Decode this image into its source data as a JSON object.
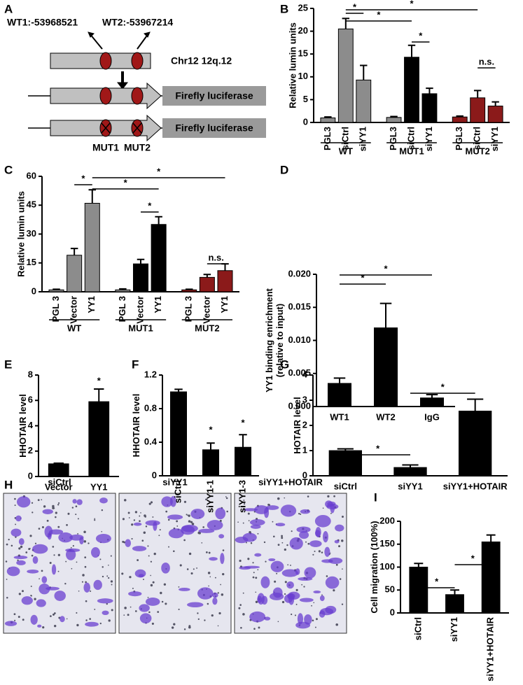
{
  "panel_labels": [
    "A",
    "B",
    "C",
    "D",
    "E",
    "F",
    "G",
    "H",
    "I"
  ],
  "diagram": {
    "labels": [
      "WT1:-53968521",
      "WT2:-53967214",
      "Chr12 12q.12",
      "Firefly luciferase",
      "Firefly luciferase",
      "MUT1",
      "MUT2"
    ]
  },
  "images": {
    "labels": [
      "siCtrl",
      "siYY1",
      "siYY1+HOTAIR"
    ]
  },
  "chart_data": [
    {
      "type": "bar",
      "ylabel": "Relative lumin units",
      "ylim": [
        0,
        25
      ],
      "yticks": [
        0,
        5,
        10,
        15,
        20,
        25
      ],
      "categories": [
        "PGL3",
        "siCtrl",
        "siYY1",
        "PGL3",
        "siCtrl",
        "siYY1",
        "PGL3",
        "siCtrl",
        "siYY1"
      ],
      "groups": [
        "WT",
        "MUT1",
        "MUT2"
      ],
      "values": [
        1.0,
        20.5,
        9.3,
        1.1,
        14.3,
        6.3,
        1.2,
        5.4,
        3.6
      ],
      "errors": [
        0.2,
        2.3,
        3.2,
        0.2,
        2.6,
        1.2,
        0.2,
        1.6,
        0.9
      ],
      "colors": [
        "#8c8c8c",
        "#8c8c8c",
        "#8c8c8c",
        "#8c8c8c",
        "#000000",
        "#000000",
        "#8b1a1a",
        "#8b1a1a",
        "#8b1a1a"
      ],
      "annotations": [
        "*",
        "*",
        "*",
        "*",
        "n.s."
      ]
    },
    {
      "type": "bar",
      "ylabel": "Relative lumin units",
      "ylim": [
        0,
        60
      ],
      "yticks": [
        0,
        15,
        30,
        45,
        60
      ],
      "categories": [
        "PGL 3",
        "Vector",
        "YY1",
        "PGL 3",
        "Vector",
        "YY1",
        "PGL 3",
        "Vector",
        "YY1"
      ],
      "groups": [
        "WT",
        "MUT1",
        "MUT2"
      ],
      "values": [
        1.0,
        19,
        46,
        1.0,
        14.5,
        35,
        1.0,
        7.5,
        11
      ],
      "errors": [
        0.3,
        3.5,
        7,
        0.5,
        2.3,
        4,
        0.3,
        1.5,
        3.5
      ],
      "colors": [
        "#8c8c8c",
        "#8c8c8c",
        "#8c8c8c",
        "#8c8c8c",
        "#000000",
        "#000000",
        "#8b1a1a",
        "#8b1a1a",
        "#8b1a1a"
      ],
      "annotations": [
        "*",
        "*",
        "*",
        "*",
        "n.s."
      ]
    },
    {
      "type": "bar",
      "ylabel": [
        "YY1 binding enrichment",
        "(relative to input)"
      ],
      "ylim": [
        0,
        0.02
      ],
      "yticks": [
        {
          "value": 0,
          "label": "0.000"
        },
        {
          "value": 0.005,
          "label": "0.005"
        },
        {
          "value": 0.01,
          "label": "0.010"
        },
        {
          "value": 0.015,
          "label": "0.015"
        },
        {
          "value": 0.02,
          "label": "0.020"
        }
      ],
      "categories": [
        "WT1",
        "WT2",
        "IgG"
      ],
      "values": [
        0.0035,
        0.0119,
        0.0013
      ],
      "errors": [
        0.0008,
        0.0037,
        0.0005
      ],
      "colors": [
        "#000000",
        "#000000",
        "#000000"
      ],
      "annotations": [
        "*",
        "*"
      ]
    },
    {
      "type": "bar",
      "ylabel": "HHOTAIR level",
      "ylim": [
        0,
        8
      ],
      "yticks": [
        0,
        2,
        4,
        6,
        8
      ],
      "categories": [
        "Vector",
        "YY1"
      ],
      "values": [
        1.0,
        5.9
      ],
      "errors": [
        0.05,
        1.0
      ],
      "colors": [
        "#000000",
        "#000000"
      ],
      "annotations": [
        "*"
      ]
    },
    {
      "type": "bar",
      "ylabel": "HHOTAIR level",
      "ylim": [
        0,
        1.2
      ],
      "yticks": [
        0,
        0.4,
        0.8,
        1.2
      ],
      "categories": [
        "siCtrl",
        "siYY1-1",
        "siYY1-3"
      ],
      "values": [
        1.0,
        0.31,
        0.34
      ],
      "errors": [
        0.03,
        0.08,
        0.15
      ],
      "colors": [
        "#000000",
        "#000000",
        "#000000"
      ],
      "annotations": [
        "*",
        "*"
      ]
    },
    {
      "type": "bar",
      "ylabel": "HOTAIR level",
      "ylim": [
        0,
        4
      ],
      "yticks": [
        0,
        1,
        2,
        3,
        4
      ],
      "categories": [
        "siCtrl",
        "siYY1",
        "siYY1+HOTAIR"
      ],
      "values": [
        1.0,
        0.33,
        2.57
      ],
      "errors": [
        0.07,
        0.1,
        0.47
      ],
      "colors": [
        "#000000",
        "#000000",
        "#000000"
      ],
      "annotations": [
        "*",
        "*"
      ]
    },
    {
      "type": "bar",
      "ylabel": "Cell migration (100%)",
      "ylim": [
        0,
        200
      ],
      "yticks": [
        0,
        50,
        100,
        150,
        200
      ],
      "categories": [
        "siCtrl",
        "siYY1",
        "siYY1+HOTAIR"
      ],
      "values": [
        100,
        40,
        155
      ],
      "errors": [
        8,
        10,
        15
      ],
      "colors": [
        "#000000",
        "#000000",
        "#000000"
      ],
      "annotations": [
        "*",
        "*"
      ]
    }
  ]
}
